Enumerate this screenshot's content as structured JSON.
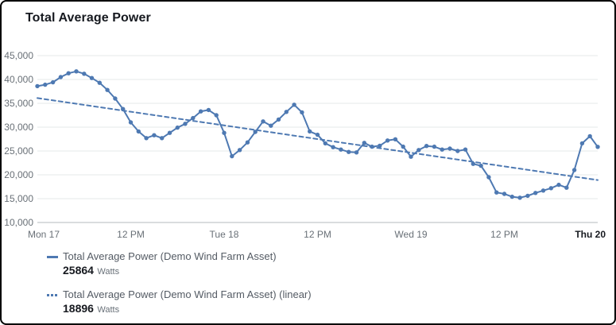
{
  "widget": {
    "title": "Total Average Power"
  },
  "legend": {
    "entries": [
      {
        "swatch": "solid-line",
        "label": "Total Average Power (Demo Wind Farm Asset)",
        "value": "25864",
        "unit": "Watts"
      },
      {
        "swatch": "dotted-line",
        "label": "Total Average Power (Demo Wind Farm Asset) (linear)",
        "value": "18896",
        "unit": "Watts"
      }
    ]
  },
  "chart_data": {
    "type": "line",
    "title": "Total Average Power",
    "xlabel": "",
    "ylabel": "",
    "unit": "Watts",
    "ylim": [
      10000,
      45000
    ],
    "y_ticks": [
      "45,000",
      "40,000",
      "35,000",
      "30,000",
      "25,000",
      "20,000",
      "15,000",
      "10,000"
    ],
    "x_ticks": [
      "Mon 17",
      "12 PM",
      "Tue 18",
      "12 PM",
      "Wed 19",
      "12 PM",
      "Thu 20"
    ],
    "grid": true,
    "legend_position": "bottom-left",
    "series": [
      {
        "name": "Total Average Power (Demo Wind Farm Asset)",
        "style": "solid",
        "markers": true,
        "current_value": 25864,
        "values": [
          38600,
          38900,
          39400,
          40500,
          41300,
          41700,
          41200,
          40300,
          39300,
          37800,
          36000,
          33800,
          31000,
          29100,
          27700,
          28300,
          27700,
          28800,
          29900,
          30700,
          31900,
          33300,
          33600,
          32500,
          28800,
          23900,
          25200,
          26800,
          29000,
          31200,
          30300,
          31600,
          33200,
          34700,
          33100,
          29100,
          28400,
          26600,
          25800,
          25300,
          24800,
          24700,
          26700,
          25900,
          26100,
          27200,
          27450,
          25900,
          23800,
          25200,
          26050,
          25900,
          25300,
          25500,
          25000,
          25300,
          22300,
          21900,
          19500,
          16300,
          16000,
          15400,
          15200,
          15600,
          16200,
          16700,
          17200,
          17900,
          17300,
          21000,
          26600,
          28100,
          25864
        ]
      },
      {
        "name": "Total Average Power (Demo Wind Farm Asset) (linear)",
        "style": "dashed",
        "markers": false,
        "current_value": 18896,
        "values": [
          36100,
          18896
        ]
      }
    ],
    "colors": {
      "line": "#4e79b2",
      "grid": "#e6e9e9",
      "axis_baseline": "#b4babc",
      "tick_label": "#697077",
      "last_tick_label": "#16191f",
      "title": "#16191f"
    }
  }
}
